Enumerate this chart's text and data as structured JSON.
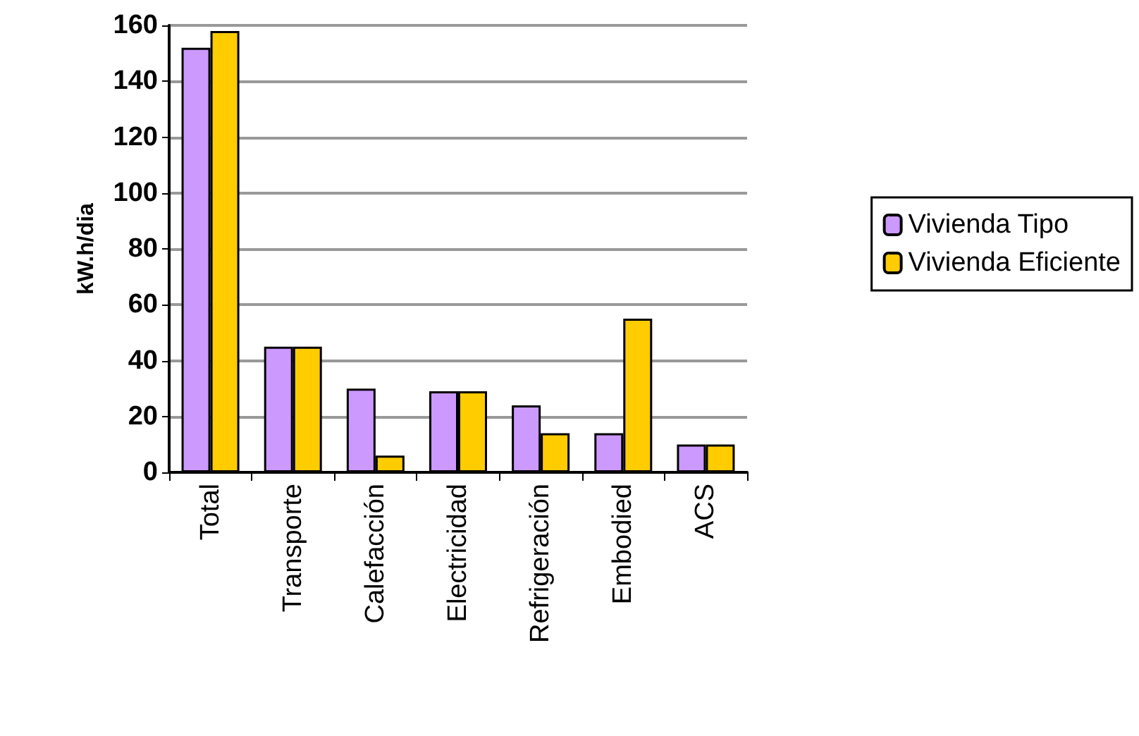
{
  "chart_data": {
    "type": "bar",
    "ylabel": "kW.h/dia",
    "categories": [
      "Total",
      "Transporte",
      "Calefacción",
      "Electricidad",
      "Refrigeración",
      "Embodied",
      "ACS"
    ],
    "series": [
      {
        "name": "Vivienda Tipo",
        "color": "#cc99ff",
        "values": [
          152,
          45,
          30,
          29,
          24,
          14,
          10
        ]
      },
      {
        "name": "Vivienda Eficiente",
        "color": "#ffcc00",
        "values": [
          158,
          45,
          6,
          29,
          14,
          55,
          10
        ]
      }
    ],
    "ylim": [
      0,
      160
    ],
    "yticks": [
      0,
      20,
      40,
      60,
      80,
      100,
      120,
      140,
      160
    ],
    "grid": "y",
    "legend": "right"
  }
}
